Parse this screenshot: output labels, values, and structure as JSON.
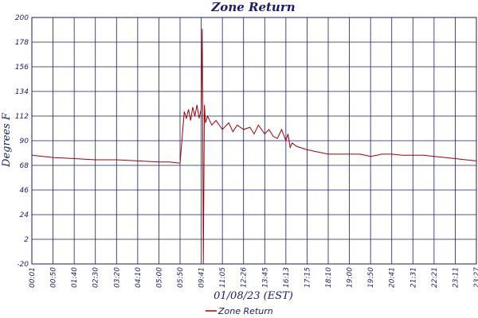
{
  "chart_data": {
    "type": "line",
    "title": "Zone Return",
    "xlabel": "01/08/23 (EST)",
    "ylabel": "Degrees F",
    "ylim": [
      -20,
      200
    ],
    "y_ticks": [
      "200",
      "178",
      "156",
      "134",
      "112",
      "90",
      "68",
      "46",
      "24",
      "2",
      "-20"
    ],
    "x_ticks": [
      "00:01",
      "00:50",
      "01:40",
      "02:30",
      "03:20",
      "04:10",
      "05:00",
      "05:50",
      "09:41",
      "11:05",
      "12:26",
      "13:45",
      "16:13",
      "17:15",
      "18:10",
      "19:00",
      "19:50",
      "20:41",
      "21:31",
      "22:21",
      "23:11",
      "23:27"
    ],
    "grid": true,
    "legend_position": "bottom-center",
    "colors": {
      "line": "#a00000",
      "grid": "#1a1a6e",
      "text": "#1a1a6e"
    },
    "series": [
      {
        "name": "Zone Return",
        "x_index": [
          0,
          1,
          2,
          3,
          4,
          5,
          6,
          6.5,
          7,
          7.2,
          7.3,
          7.4,
          7.5,
          7.6,
          7.7,
          7.8,
          7.9,
          8.0,
          8.05,
          8.1,
          8.15,
          8.2,
          8.3,
          8.5,
          8.7,
          9,
          9.3,
          9.5,
          9.7,
          10,
          10.3,
          10.5,
          10.7,
          11,
          11.2,
          11.4,
          11.6,
          11.8,
          12,
          12.1,
          12.2,
          12.3,
          12.5,
          13,
          13.5,
          14,
          14.5,
          15,
          15.5,
          16,
          16.3,
          16.5,
          17,
          17.5,
          18,
          18.5,
          19,
          19.5,
          20,
          20.5,
          21
        ],
        "values": [
          77,
          75,
          74,
          73,
          73,
          72,
          71,
          71,
          70,
          116,
          110,
          118,
          108,
          120,
          112,
          122,
          110,
          118,
          190,
          -20,
          122,
          106,
          112,
          104,
          108,
          100,
          106,
          98,
          104,
          100,
          102,
          96,
          104,
          96,
          100,
          94,
          92,
          100,
          90,
          96,
          84,
          88,
          85,
          82,
          80,
          78,
          78,
          78,
          78,
          76,
          77,
          78,
          78,
          77,
          77,
          77,
          76,
          75,
          74,
          73,
          72
        ]
      }
    ]
  }
}
